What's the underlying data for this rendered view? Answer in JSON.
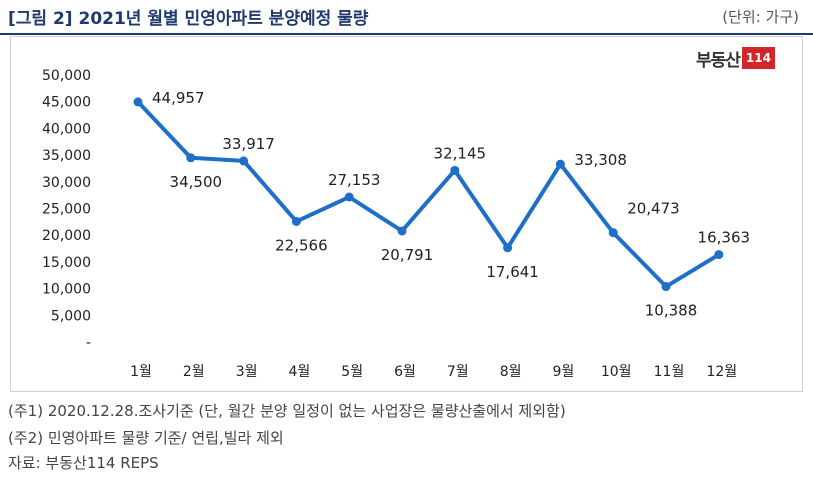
{
  "header": {
    "title": "[그림 2] 2021년 월별 민영아파트 분양예정 물량",
    "unit": "(단위: 가구)"
  },
  "logo": {
    "text": "부동산",
    "badge": "114"
  },
  "chart_data": {
    "type": "line",
    "categories": [
      "1월",
      "2월",
      "3월",
      "4월",
      "5월",
      "6월",
      "7월",
      "8월",
      "9월",
      "10월",
      "11월",
      "12월"
    ],
    "series": [
      {
        "values": [
          44957,
          34500,
          33917,
          22566,
          27153,
          20791,
          32145,
          17641,
          33308,
          20473,
          10388,
          16363
        ]
      }
    ],
    "data_labels": [
      "44,957",
      "34,500",
      "33,917",
      "22,566",
      "27,153",
      "20,791",
      "32,145",
      "17,641",
      "33,308",
      "20,473",
      "10,388",
      "16,363"
    ],
    "y_tick_labels": [
      "-",
      "5,000",
      "10,000",
      "15,000",
      "20,000",
      "25,000",
      "30,000",
      "35,000",
      "40,000",
      "45,000",
      "50,000"
    ],
    "ylim": [
      0,
      50000
    ],
    "grid": false,
    "line_color": "#1f6ec9"
  },
  "notes": [
    "(주1) 2020.12.28.조사기준 (단, 월간 분양 일정이 없는 사업장은 물량산출에서 제외함)",
    "(주2) 민영아파트 물량 기준/ 연립,빌라 제외",
    "자료: 부동산114 REPS"
  ]
}
